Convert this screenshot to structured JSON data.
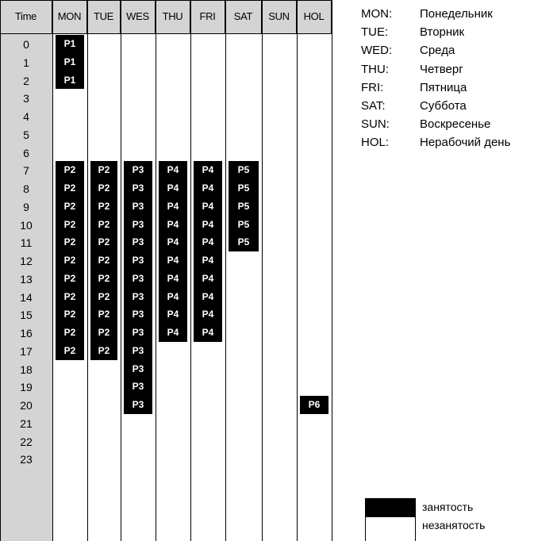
{
  "header": {
    "time_label": "Time",
    "days": [
      "MON",
      "TUE",
      "WES",
      "THU",
      "FRI",
      "SAT",
      "SUN",
      "HOL"
    ]
  },
  "hours": [
    "0",
    "1",
    "2",
    "3",
    "4",
    "5",
    "6",
    "7",
    "8",
    "9",
    "10",
    "11",
    "12",
    "13",
    "14",
    "15",
    "16",
    "17",
    "18",
    "19",
    "20",
    "21",
    "22",
    "23"
  ],
  "occupancy": [
    {
      "day": "MON",
      "label": "P1",
      "from_hour": 0,
      "to_hour": 2
    },
    {
      "day": "MON",
      "label": "P2",
      "from_hour": 7,
      "to_hour": 17
    },
    {
      "day": "TUE",
      "label": "P2",
      "from_hour": 7,
      "to_hour": 17
    },
    {
      "day": "WES",
      "label": "P3",
      "from_hour": 7,
      "to_hour": 20
    },
    {
      "day": "THU",
      "label": "P4",
      "from_hour": 7,
      "to_hour": 16
    },
    {
      "day": "FRI",
      "label": "P4",
      "from_hour": 7,
      "to_hour": 16
    },
    {
      "day": "SAT",
      "label": "P5",
      "from_hour": 7,
      "to_hour": 11
    },
    {
      "day": "HOL",
      "label": "P6",
      "from_hour": 20,
      "to_hour": 20
    }
  ],
  "legend": [
    {
      "code": "MON:",
      "name": "Понедельник"
    },
    {
      "code": "TUE:",
      "name": "Вторник"
    },
    {
      "code": "WED:",
      "name": "Среда"
    },
    {
      "code": "THU:",
      "name": "Четверг"
    },
    {
      "code": "FRI:",
      "name": "Пятница"
    },
    {
      "code": "SAT:",
      "name": "Суббота"
    },
    {
      "code": "SUN:",
      "name": "Воскресенье"
    },
    {
      "code": "HOL:",
      "name": "Нерабочий день"
    }
  ],
  "key": {
    "occupied_label": "занятость",
    "free_label": "незанятость",
    "occupied_color": "#000000",
    "free_color": "#ffffff"
  },
  "colors": {
    "header_bg": "#d4d4d4",
    "time_column_bg": "#d4d4d4",
    "occupied": "#000000",
    "occupied_text": "#ffffff"
  }
}
